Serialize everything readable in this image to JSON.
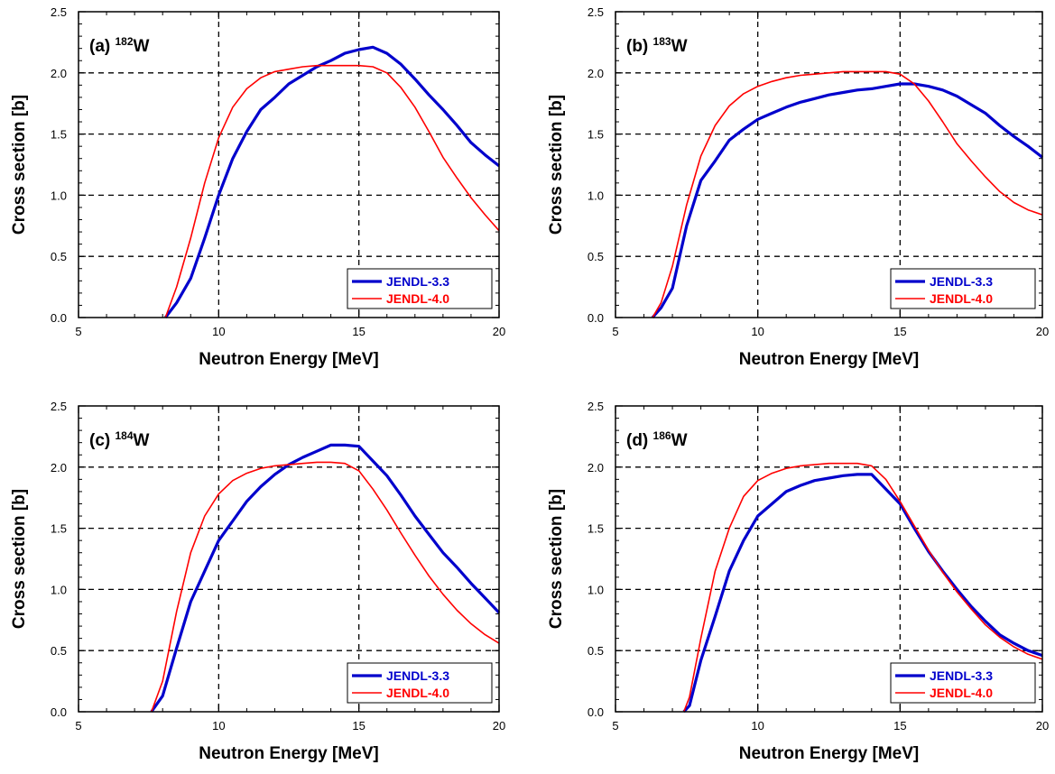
{
  "chart_data": [
    {
      "type": "line",
      "panel_label": "(a)",
      "isotope_mass": "182",
      "isotope_symbol": "W",
      "xlabel": "Neutron Energy [MeV]",
      "ylabel": "Cross section [b]",
      "xlim": [
        5,
        20
      ],
      "ylim": [
        0,
        2.5
      ],
      "xticks": [
        "5",
        "10",
        "15",
        "20"
      ],
      "yticks": [
        "0.0",
        "0.5",
        "1.0",
        "1.5",
        "2.0",
        "2.5"
      ],
      "grid": true,
      "legend_position": "bottom-right",
      "series": [
        {
          "name": "JENDL-3.3",
          "color": "#0000cc",
          "x": [
            8.1,
            8.5,
            9.0,
            9.5,
            10.0,
            10.5,
            11.0,
            11.5,
            12.0,
            12.5,
            13.0,
            13.5,
            14.0,
            14.5,
            15.0,
            15.5,
            16.0,
            16.5,
            17.0,
            17.5,
            18.0,
            18.5,
            19.0,
            19.5,
            20.0
          ],
          "y": [
            0.0,
            0.12,
            0.32,
            0.65,
            1.0,
            1.3,
            1.52,
            1.7,
            1.8,
            1.91,
            1.98,
            2.05,
            2.1,
            2.16,
            2.19,
            2.21,
            2.16,
            2.07,
            1.95,
            1.82,
            1.7,
            1.57,
            1.43,
            1.33,
            1.24
          ]
        },
        {
          "name": "JENDL-4.0",
          "color": "#ff0000",
          "x": [
            8.1,
            8.5,
            9.0,
            9.5,
            10.0,
            10.5,
            11.0,
            11.5,
            12.0,
            12.5,
            13.0,
            13.5,
            14.0,
            14.5,
            15.0,
            15.5,
            16.0,
            16.5,
            17.0,
            17.5,
            18.0,
            18.5,
            19.0,
            19.5,
            20.0
          ],
          "y": [
            0.0,
            0.25,
            0.65,
            1.1,
            1.47,
            1.72,
            1.87,
            1.96,
            2.01,
            2.03,
            2.05,
            2.06,
            2.06,
            2.06,
            2.06,
            2.05,
            2.0,
            1.88,
            1.72,
            1.52,
            1.31,
            1.14,
            0.98,
            0.84,
            0.71
          ]
        }
      ]
    },
    {
      "type": "line",
      "panel_label": "(b)",
      "isotope_mass": "183",
      "isotope_symbol": "W",
      "xlabel": "Neutron Energy [MeV]",
      "ylabel": "Cross section [b]",
      "xlim": [
        5,
        20
      ],
      "ylim": [
        0,
        2.5
      ],
      "xticks": [
        "5",
        "10",
        "15",
        "20"
      ],
      "yticks": [
        "0.0",
        "0.5",
        "1.0",
        "1.5",
        "2.0",
        "2.5"
      ],
      "grid": true,
      "legend_position": "bottom-right",
      "series": [
        {
          "name": "JENDL-3.3",
          "color": "#0000cc",
          "x": [
            6.3,
            6.6,
            7.0,
            7.5,
            8.0,
            8.5,
            9.0,
            9.5,
            10.0,
            10.5,
            11.0,
            11.5,
            12.0,
            12.5,
            13.0,
            13.5,
            14.0,
            14.5,
            15.0,
            15.5,
            16.0,
            16.5,
            17.0,
            17.5,
            18.0,
            18.5,
            19.0,
            19.5,
            20.0
          ],
          "y": [
            0.0,
            0.08,
            0.24,
            0.75,
            1.12,
            1.28,
            1.45,
            1.54,
            1.62,
            1.67,
            1.72,
            1.76,
            1.79,
            1.82,
            1.84,
            1.86,
            1.87,
            1.89,
            1.91,
            1.91,
            1.89,
            1.86,
            1.81,
            1.74,
            1.67,
            1.57,
            1.48,
            1.4,
            1.31
          ]
        },
        {
          "name": "JENDL-4.0",
          "color": "#ff0000",
          "x": [
            6.3,
            6.6,
            7.0,
            7.5,
            8.0,
            8.5,
            9.0,
            9.5,
            10.0,
            10.5,
            11.0,
            11.5,
            12.0,
            12.5,
            13.0,
            13.5,
            14.0,
            14.5,
            15.0,
            15.5,
            16.0,
            16.5,
            17.0,
            17.5,
            18.0,
            18.5,
            19.0,
            19.5,
            20.0
          ],
          "y": [
            0.0,
            0.12,
            0.42,
            0.92,
            1.32,
            1.57,
            1.73,
            1.83,
            1.89,
            1.93,
            1.96,
            1.98,
            1.99,
            2.0,
            2.01,
            2.01,
            2.01,
            2.01,
            1.99,
            1.91,
            1.77,
            1.6,
            1.42,
            1.28,
            1.15,
            1.03,
            0.94,
            0.88,
            0.84
          ]
        }
      ]
    },
    {
      "type": "line",
      "panel_label": "(c)",
      "isotope_mass": "184",
      "isotope_symbol": "W",
      "xlabel": "Neutron Energy [MeV]",
      "ylabel": "Cross section [b]",
      "xlim": [
        5,
        20
      ],
      "ylim": [
        0,
        2.5
      ],
      "xticks": [
        "5",
        "10",
        "15",
        "20"
      ],
      "yticks": [
        "0.0",
        "0.5",
        "1.0",
        "1.5",
        "2.0",
        "2.5"
      ],
      "grid": true,
      "legend_position": "bottom-right",
      "series": [
        {
          "name": "JENDL-3.3",
          "color": "#0000cc",
          "x": [
            7.6,
            8.0,
            8.5,
            9.0,
            9.5,
            10.0,
            10.5,
            11.0,
            11.5,
            12.0,
            12.5,
            13.0,
            13.5,
            14.0,
            14.5,
            15.0,
            15.5,
            16.0,
            16.5,
            17.0,
            17.5,
            18.0,
            18.5,
            19.0,
            19.5,
            20.0
          ],
          "y": [
            0.0,
            0.13,
            0.52,
            0.9,
            1.15,
            1.4,
            1.56,
            1.72,
            1.84,
            1.94,
            2.02,
            2.08,
            2.13,
            2.18,
            2.18,
            2.17,
            2.05,
            1.93,
            1.77,
            1.6,
            1.45,
            1.3,
            1.18,
            1.05,
            0.93,
            0.81
          ]
        },
        {
          "name": "JENDL-4.0",
          "color": "#ff0000",
          "x": [
            7.6,
            8.0,
            8.5,
            9.0,
            9.5,
            10.0,
            10.5,
            11.0,
            11.5,
            12.0,
            12.5,
            13.0,
            13.5,
            14.0,
            14.5,
            15.0,
            15.5,
            16.0,
            16.5,
            17.0,
            17.5,
            18.0,
            18.5,
            19.0,
            19.5,
            20.0
          ],
          "y": [
            0.0,
            0.25,
            0.82,
            1.3,
            1.6,
            1.78,
            1.89,
            1.95,
            1.99,
            2.01,
            2.02,
            2.03,
            2.04,
            2.04,
            2.03,
            1.97,
            1.82,
            1.65,
            1.46,
            1.28,
            1.11,
            0.96,
            0.83,
            0.72,
            0.63,
            0.56
          ]
        }
      ]
    },
    {
      "type": "line",
      "panel_label": "(d)",
      "isotope_mass": "186",
      "isotope_symbol": "W",
      "xlabel": "Neutron Energy [MeV]",
      "ylabel": "Cross section [b]",
      "xlim": [
        5,
        20
      ],
      "ylim": [
        0,
        2.5
      ],
      "xticks": [
        "5",
        "10",
        "15",
        "20"
      ],
      "yticks": [
        "0.0",
        "0.5",
        "1.0",
        "1.5",
        "2.0",
        "2.5"
      ],
      "grid": true,
      "legend_position": "bottom-right",
      "series": [
        {
          "name": "JENDL-3.3",
          "color": "#0000cc",
          "x": [
            7.4,
            7.6,
            8.0,
            8.5,
            9.0,
            9.5,
            10.0,
            10.5,
            11.0,
            11.5,
            12.0,
            12.5,
            13.0,
            13.5,
            14.0,
            14.5,
            15.0,
            15.5,
            16.0,
            16.5,
            17.0,
            17.5,
            18.0,
            18.5,
            19.0,
            19.5,
            20.0
          ],
          "y": [
            0.0,
            0.05,
            0.42,
            0.78,
            1.15,
            1.4,
            1.6,
            1.7,
            1.8,
            1.85,
            1.89,
            1.91,
            1.93,
            1.94,
            1.94,
            1.82,
            1.7,
            1.5,
            1.31,
            1.15,
            1.0,
            0.86,
            0.74,
            0.63,
            0.56,
            0.5,
            0.46
          ]
        },
        {
          "name": "JENDL-4.0",
          "color": "#ff0000",
          "x": [
            7.4,
            7.6,
            8.0,
            8.5,
            9.0,
            9.5,
            10.0,
            10.5,
            11.0,
            11.5,
            12.0,
            12.5,
            13.0,
            13.5,
            14.0,
            14.5,
            15.0,
            15.5,
            16.0,
            16.5,
            17.0,
            17.5,
            18.0,
            18.5,
            19.0,
            19.5,
            20.0
          ],
          "y": [
            0.0,
            0.12,
            0.6,
            1.15,
            1.5,
            1.76,
            1.89,
            1.95,
            1.99,
            2.01,
            2.02,
            2.03,
            2.03,
            2.03,
            2.01,
            1.9,
            1.72,
            1.52,
            1.32,
            1.14,
            0.98,
            0.84,
            0.71,
            0.61,
            0.53,
            0.47,
            0.43
          ]
        }
      ]
    }
  ]
}
